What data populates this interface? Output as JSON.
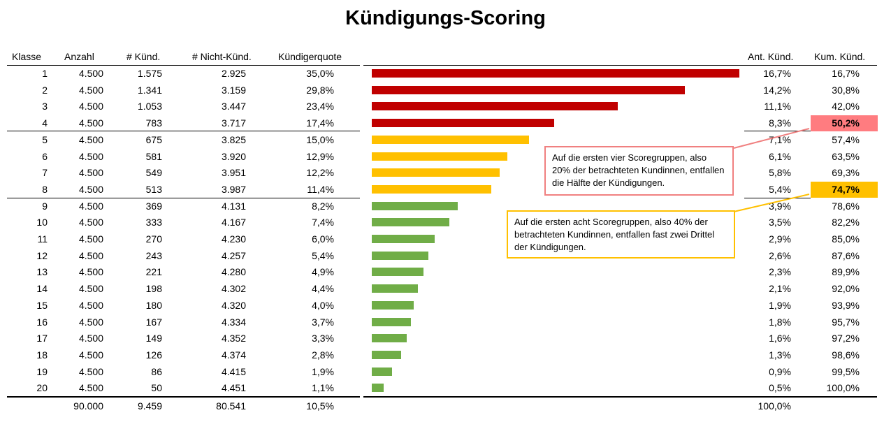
{
  "title": "Kündigungs-Scoring",
  "columns": {
    "klasse": "Klasse",
    "anzahl": "Anzahl",
    "kuend": "# Künd.",
    "nicht": "# Nicht-Künd.",
    "quote": "Kündigerquote",
    "ant": "Ant. Künd.",
    "kum": "Kum. Künd."
  },
  "rows": [
    {
      "klasse": "1",
      "anzahl": "4.500",
      "kuend": "1.575",
      "nicht": "2.925",
      "quote": "35,0%",
      "ant": "16,7%",
      "kum": "16,7%"
    },
    {
      "klasse": "2",
      "anzahl": "4.500",
      "kuend": "1.341",
      "nicht": "3.159",
      "quote": "29,8%",
      "ant": "14,2%",
      "kum": "30,8%"
    },
    {
      "klasse": "3",
      "anzahl": "4.500",
      "kuend": "1.053",
      "nicht": "3.447",
      "quote": "23,4%",
      "ant": "11,1%",
      "kum": "42,0%"
    },
    {
      "klasse": "4",
      "anzahl": "4.500",
      "kuend": "783",
      "nicht": "3.717",
      "quote": "17,4%",
      "ant": "8,3%",
      "kum": "50,2%"
    },
    {
      "klasse": "5",
      "anzahl": "4.500",
      "kuend": "675",
      "nicht": "3.825",
      "quote": "15,0%",
      "ant": "7,1%",
      "kum": "57,4%"
    },
    {
      "klasse": "6",
      "anzahl": "4.500",
      "kuend": "581",
      "nicht": "3.920",
      "quote": "12,9%",
      "ant": "6,1%",
      "kum": "63,5%"
    },
    {
      "klasse": "7",
      "anzahl": "4.500",
      "kuend": "549",
      "nicht": "3.951",
      "quote": "12,2%",
      "ant": "5,8%",
      "kum": "69,3%"
    },
    {
      "klasse": "8",
      "anzahl": "4.500",
      "kuend": "513",
      "nicht": "3.987",
      "quote": "11,4%",
      "ant": "5,4%",
      "kum": "74,7%"
    },
    {
      "klasse": "9",
      "anzahl": "4.500",
      "kuend": "369",
      "nicht": "4.131",
      "quote": "8,2%",
      "ant": "3,9%",
      "kum": "78,6%"
    },
    {
      "klasse": "10",
      "anzahl": "4.500",
      "kuend": "333",
      "nicht": "4.167",
      "quote": "7,4%",
      "ant": "3,5%",
      "kum": "82,2%"
    },
    {
      "klasse": "11",
      "anzahl": "4.500",
      "kuend": "270",
      "nicht": "4.230",
      "quote": "6,0%",
      "ant": "2,9%",
      "kum": "85,0%"
    },
    {
      "klasse": "12",
      "anzahl": "4.500",
      "kuend": "243",
      "nicht": "4.257",
      "quote": "5,4%",
      "ant": "2,6%",
      "kum": "87,6%"
    },
    {
      "klasse": "13",
      "anzahl": "4.500",
      "kuend": "221",
      "nicht": "4.280",
      "quote": "4,9%",
      "ant": "2,3%",
      "kum": "89,9%"
    },
    {
      "klasse": "14",
      "anzahl": "4.500",
      "kuend": "198",
      "nicht": "4.302",
      "quote": "4,4%",
      "ant": "2,1%",
      "kum": "92,0%"
    },
    {
      "klasse": "15",
      "anzahl": "4.500",
      "kuend": "180",
      "nicht": "4.320",
      "quote": "4,0%",
      "ant": "1,9%",
      "kum": "93,9%"
    },
    {
      "klasse": "16",
      "anzahl": "4.500",
      "kuend": "167",
      "nicht": "4.334",
      "quote": "3,7%",
      "ant": "1,8%",
      "kum": "95,7%"
    },
    {
      "klasse": "17",
      "anzahl": "4.500",
      "kuend": "149",
      "nicht": "4.352",
      "quote": "3,3%",
      "ant": "1,6%",
      "kum": "97,2%"
    },
    {
      "klasse": "18",
      "anzahl": "4.500",
      "kuend": "126",
      "nicht": "4.374",
      "quote": "2,8%",
      "ant": "1,3%",
      "kum": "98,6%"
    },
    {
      "klasse": "19",
      "anzahl": "4.500",
      "kuend": "86",
      "nicht": "4.415",
      "quote": "1,9%",
      "ant": "0,9%",
      "kum": "99,5%"
    },
    {
      "klasse": "20",
      "anzahl": "4.500",
      "kuend": "50",
      "nicht": "4.451",
      "quote": "1,1%",
      "ant": "0,5%",
      "kum": "100,0%"
    }
  ],
  "totals": {
    "anzahl": "90.000",
    "kuend": "9.459",
    "nicht": "80.541",
    "quote": "10,5%",
    "ant": "100,0%"
  },
  "chart_data": {
    "type": "bar",
    "orientation": "horizontal",
    "categories": [
      "1",
      "2",
      "3",
      "4",
      "5",
      "6",
      "7",
      "8",
      "9",
      "10",
      "11",
      "12",
      "13",
      "14",
      "15",
      "16",
      "17",
      "18",
      "19",
      "20"
    ],
    "values": [
      35.0,
      29.8,
      23.4,
      17.4,
      15.0,
      12.9,
      12.2,
      11.4,
      8.2,
      7.4,
      6.0,
      5.4,
      4.9,
      4.4,
      4.0,
      3.7,
      3.3,
      2.8,
      1.9,
      1.1
    ],
    "xlim": [
      0,
      35
    ],
    "colors": [
      "#c00000",
      "#c00000",
      "#c00000",
      "#c00000",
      "#ffc000",
      "#ffc000",
      "#ffc000",
      "#ffc000",
      "#70ad47",
      "#70ad47",
      "#70ad47",
      "#70ad47",
      "#70ad47",
      "#70ad47",
      "#70ad47",
      "#70ad47",
      "#70ad47",
      "#70ad47",
      "#70ad47",
      "#70ad47"
    ]
  },
  "highlights": [
    {
      "row": 4,
      "color": "#ff7c80"
    },
    {
      "row": 8,
      "color": "#ffc000"
    }
  ],
  "callouts": {
    "first": "Auf die ersten vier Scoregruppen, also 20% der betrachteten Kundinnen, entfallen die Hälfte der Kündigungen.",
    "second": "Auf die ersten acht Scoregruppen, also 40% der betrachteten Kundinnen, entfallen fast zwei Drittel der Kündigungen.",
    "first_border": "#f08080",
    "second_border": "#ffc000"
  }
}
